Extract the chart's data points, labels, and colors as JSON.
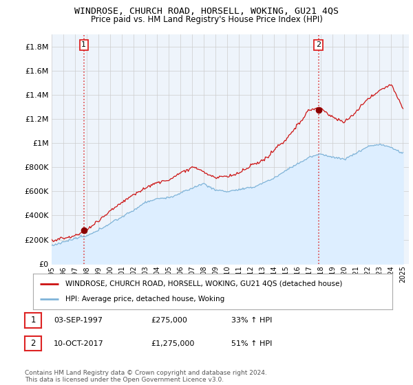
{
  "title": "WINDROSE, CHURCH ROAD, HORSELL, WOKING, GU21 4QS",
  "subtitle": "Price paid vs. HM Land Registry's House Price Index (HPI)",
  "ylabel_ticks": [
    "£0",
    "£200K",
    "£400K",
    "£600K",
    "£800K",
    "£1M",
    "£1.2M",
    "£1.4M",
    "£1.6M",
    "£1.8M"
  ],
  "ytick_values": [
    0,
    200000,
    400000,
    600000,
    800000,
    1000000,
    1200000,
    1400000,
    1600000,
    1800000
  ],
  "ylim": [
    0,
    1900000
  ],
  "sale1_date_num": 1997.75,
  "sale1_price": 275000,
  "sale1_label": "1",
  "sale2_date_num": 2017.78,
  "sale2_price": 1275000,
  "sale2_label": "2",
  "hpi_color": "#7eb3d8",
  "hpi_fill_color": "#ddeeff",
  "price_color": "#cc1111",
  "vline_color": "#dd2222",
  "grid_color": "#cccccc",
  "background_color": "#ffffff",
  "plot_bg_color": "#eef4fb",
  "legend_label_price": "WINDROSE, CHURCH ROAD, HORSELL, WOKING, GU21 4QS (detached house)",
  "legend_label_hpi": "HPI: Average price, detached house, Woking",
  "annotation1": [
    "1",
    "03-SEP-1997",
    "£275,000",
    "33% ↑ HPI"
  ],
  "annotation2": [
    "2",
    "10-OCT-2017",
    "£1,275,000",
    "51% ↑ HPI"
  ],
  "footnote": "Contains HM Land Registry data © Crown copyright and database right 2024.\nThis data is licensed under the Open Government Licence v3.0.",
  "xmin": 1995.0,
  "xmax": 2025.5,
  "xtick_years": [
    1995,
    1996,
    1997,
    1998,
    1999,
    2000,
    2001,
    2002,
    2003,
    2004,
    2005,
    2006,
    2007,
    2008,
    2009,
    2010,
    2011,
    2012,
    2013,
    2014,
    2015,
    2016,
    2017,
    2018,
    2019,
    2020,
    2021,
    2022,
    2023,
    2024,
    2025
  ]
}
